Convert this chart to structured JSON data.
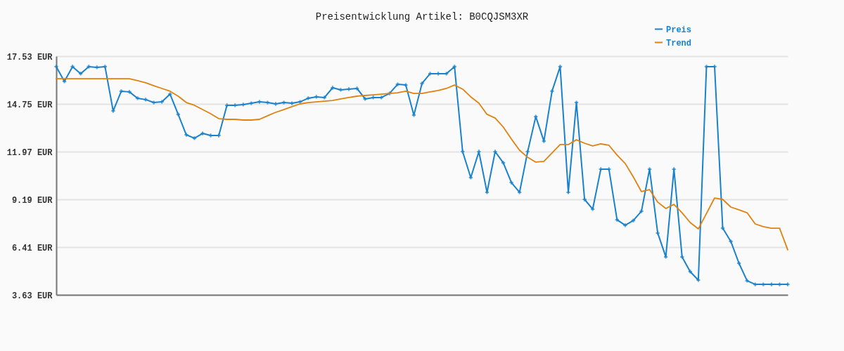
{
  "chart_data": {
    "type": "line",
    "title": "Preisentwicklung Artikel: B0CQJSM3XR",
    "categories": [
      null,
      null,
      null,
      null,
      null,
      null,
      null,
      null,
      null,
      null,
      null,
      null,
      null,
      null,
      null,
      null,
      null,
      null,
      null,
      null,
      null,
      null,
      null,
      null,
      null,
      null,
      null,
      null,
      null,
      null,
      null,
      null,
      null,
      null,
      null,
      null,
      null,
      null,
      null,
      null,
      null,
      null,
      null,
      null,
      null,
      null,
      null,
      null,
      null,
      null,
      null,
      null,
      null,
      null,
      null,
      null,
      null,
      null,
      null,
      null,
      null,
      null,
      null,
      null,
      null,
      null,
      null,
      null,
      null,
      null,
      null,
      null,
      null,
      null,
      null,
      null,
      null,
      null,
      null,
      null,
      null,
      null,
      null,
      null,
      null,
      null,
      null,
      null,
      null,
      null,
      null
    ],
    "series": [
      {
        "name": "Preis",
        "color": "#1a82cc",
        "marker": "cross",
        "values": [
          16.92,
          16.06,
          16.92,
          16.51,
          16.92,
          16.88,
          16.92,
          14.34,
          15.49,
          15.45,
          15.08,
          15.0,
          14.83,
          14.87,
          15.32,
          14.14,
          12.95,
          12.75,
          13.03,
          12.91,
          12.91,
          14.67,
          14.67,
          14.71,
          14.79,
          14.87,
          14.83,
          14.75,
          14.83,
          14.79,
          14.87,
          15.08,
          15.16,
          15.12,
          15.69,
          15.57,
          15.61,
          15.65,
          15.04,
          15.12,
          15.12,
          15.36,
          15.89,
          15.85,
          14.1,
          15.94,
          16.51,
          16.51,
          16.51,
          16.92,
          11.97,
          10.46,
          11.97,
          9.6,
          11.97,
          11.32,
          10.17,
          9.6,
          11.97,
          14.01,
          12.58,
          15.49,
          16.92,
          9.6,
          14.83,
          9.19,
          8.62,
          10.95,
          10.95,
          8.0,
          7.68,
          7.96,
          8.5,
          10.95,
          7.23,
          5.84,
          10.95,
          5.84,
          4.98,
          4.49,
          16.92,
          16.92,
          7.51,
          6.74,
          5.47,
          4.45,
          4.24,
          4.24,
          4.24,
          4.24,
          4.24
        ]
      },
      {
        "name": "Trend",
        "color": "#e0820f",
        "marker": "none",
        "values": [
          16.22,
          16.22,
          16.22,
          16.22,
          16.22,
          16.22,
          16.22,
          16.22,
          16.22,
          16.22,
          16.1,
          15.98,
          15.81,
          15.65,
          15.49,
          15.2,
          14.83,
          14.67,
          14.42,
          14.18,
          13.89,
          13.85,
          13.85,
          13.81,
          13.81,
          13.85,
          14.06,
          14.26,
          14.42,
          14.59,
          14.75,
          14.83,
          14.87,
          14.91,
          14.95,
          15.04,
          15.12,
          15.2,
          15.24,
          15.28,
          15.32,
          15.36,
          15.4,
          15.49,
          15.36,
          15.36,
          15.45,
          15.53,
          15.65,
          15.85,
          15.61,
          15.16,
          14.79,
          14.14,
          13.93,
          13.4,
          12.71,
          12.05,
          11.64,
          11.36,
          11.4,
          11.89,
          12.38,
          12.38,
          12.66,
          12.46,
          12.3,
          12.42,
          12.34,
          11.77,
          11.28,
          10.5,
          9.64,
          9.76,
          9.03,
          8.66,
          8.9,
          8.41,
          7.84,
          7.47,
          8.37,
          9.27,
          9.19,
          8.74,
          8.58,
          8.41,
          7.76,
          7.6,
          7.51,
          7.51,
          6.25
        ]
      }
    ],
    "ylim": [
      3.63,
      17.53
    ],
    "yticks": [
      {
        "value": 3.63,
        "label": "3.63 EUR"
      },
      {
        "value": 6.41,
        "label": "6.41 EUR"
      },
      {
        "value": 9.19,
        "label": "9.19 EUR"
      },
      {
        "value": 11.97,
        "label": "11.97 EUR"
      },
      {
        "value": 14.75,
        "label": "14.75 EUR"
      },
      {
        "value": 17.53,
        "label": "17.53 EUR"
      }
    ],
    "tick_labels": "y",
    "grid": "y",
    "legend": "top right",
    "line_style": "solid"
  }
}
